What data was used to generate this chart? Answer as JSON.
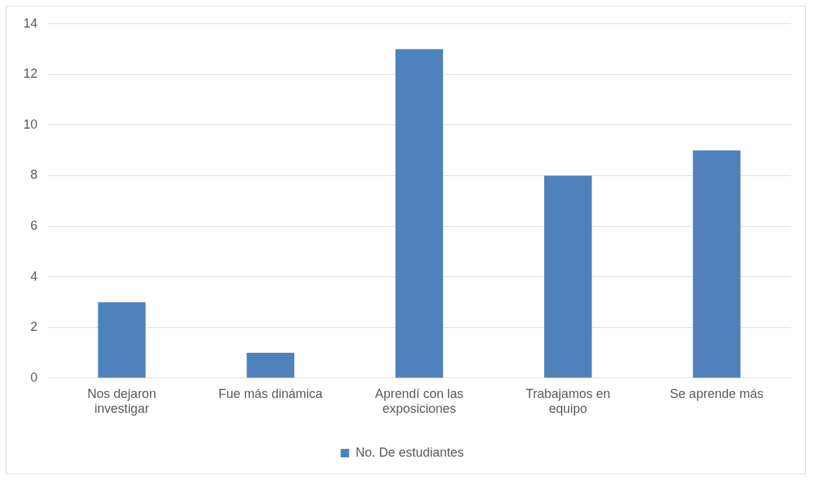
{
  "chart_data": {
    "type": "bar",
    "categories": [
      "Nos dejaron investigar",
      "Fue más dinámica",
      "Aprendí con las exposiciones",
      "Trabajamos en equipo",
      "Se aprende más"
    ],
    "series": [
      {
        "name": "No. De estudiantes",
        "color": "#4f81bd",
        "values": [
          3,
          1,
          13,
          8,
          9
        ]
      }
    ],
    "ylim": [
      0,
      14
    ],
    "yticks": [
      0,
      2,
      4,
      6,
      8,
      10,
      12,
      14
    ],
    "grid": "y",
    "legend": "bottom"
  }
}
